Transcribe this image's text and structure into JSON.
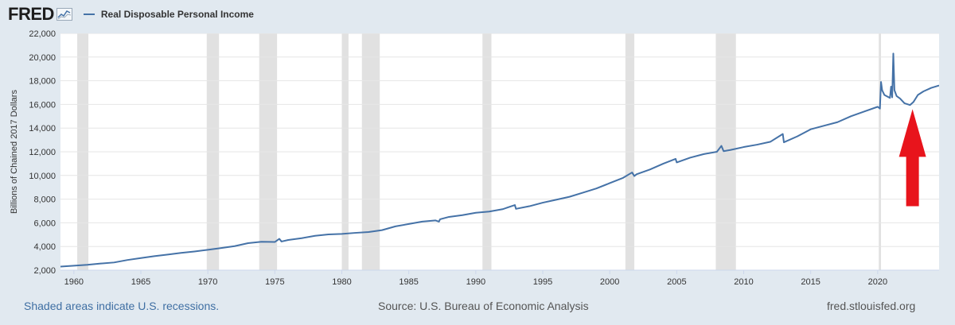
{
  "header": {
    "logo_text": "FRED",
    "legend_label": "Real Disposable Personal Income"
  },
  "footer": {
    "recession_note": "Shaded areas indicate U.S. recessions.",
    "source": "Source: U.S. Bureau of Economic Analysis",
    "site": "fred.stlouisfed.org"
  },
  "colors": {
    "series": "#4572a7",
    "recession": "#e1e1e1",
    "arrow": "#e8141c",
    "background": "#e1e9f0",
    "plot_bg": "#ffffff"
  },
  "icons": {
    "logo": "fred-logo-icon",
    "annotation": "red-up-arrow-icon"
  },
  "chart_data": {
    "type": "line",
    "title": "",
    "xlabel": "",
    "ylabel": "Billions of Chained 2017 Dollars",
    "xlim": [
      "1959-01-01",
      "2024-08-01"
    ],
    "ylim": [
      2000,
      22000
    ],
    "y_ticks": [
      2000,
      4000,
      6000,
      8000,
      10000,
      12000,
      14000,
      16000,
      18000,
      20000,
      22000
    ],
    "y_tick_labels": [
      "2,000",
      "4,000",
      "6,000",
      "8,000",
      "10,000",
      "12,000",
      "14,000",
      "16,000",
      "18,000",
      "20,000",
      "22,000"
    ],
    "x_ticks": [
      1960,
      1965,
      1970,
      1975,
      1980,
      1985,
      1990,
      1995,
      2000,
      2005,
      2010,
      2015,
      2020
    ],
    "x_tick_labels": [
      "1960",
      "1965",
      "1970",
      "1975",
      "1980",
      "1985",
      "1990",
      "1995",
      "2000",
      "2005",
      "2010",
      "2015",
      "2020"
    ],
    "grid": "horizontal",
    "legend": "top-left",
    "recessions": [
      [
        "1960-04-01",
        "1961-02-01"
      ],
      [
        "1969-12-01",
        "1970-11-01"
      ],
      [
        "1973-11-01",
        "1975-03-01"
      ],
      [
        "1980-01-01",
        "1980-07-01"
      ],
      [
        "1981-07-01",
        "1982-11-01"
      ],
      [
        "1990-07-01",
        "1991-03-01"
      ],
      [
        "2001-03-01",
        "2001-11-01"
      ],
      [
        "2007-12-01",
        "2009-06-01"
      ],
      [
        "2020-02-01",
        "2020-04-01"
      ]
    ],
    "series": [
      {
        "name": "Real Disposable Personal Income",
        "x": [
          "1959-01-01",
          "1960-01-01",
          "1961-01-01",
          "1962-01-01",
          "1963-01-01",
          "1964-01-01",
          "1965-01-01",
          "1966-01-01",
          "1967-01-01",
          "1968-01-01",
          "1969-01-01",
          "1970-01-01",
          "1971-01-01",
          "1972-01-01",
          "1973-01-01",
          "1974-01-01",
          "1975-01-01",
          "1975-05-01",
          "1975-07-01",
          "1976-01-01",
          "1977-01-01",
          "1978-01-01",
          "1979-01-01",
          "1980-01-01",
          "1981-01-01",
          "1982-01-01",
          "1983-01-01",
          "1984-01-01",
          "1985-01-01",
          "1986-01-01",
          "1987-01-01",
          "1987-04-01",
          "1987-05-01",
          "1988-01-01",
          "1989-01-01",
          "1990-01-01",
          "1991-01-01",
          "1992-01-01",
          "1992-12-01",
          "1993-01-01",
          "1994-01-01",
          "1995-01-01",
          "1996-01-01",
          "1997-01-01",
          "1998-01-01",
          "1999-01-01",
          "2000-01-01",
          "2001-01-01",
          "2001-09-01",
          "2001-11-01",
          "2002-01-01",
          "2003-01-01",
          "2004-01-01",
          "2004-12-01",
          "2005-01-01",
          "2006-01-01",
          "2007-01-01",
          "2008-01-01",
          "2008-05-01",
          "2008-07-01",
          "2009-01-01",
          "2010-01-01",
          "2011-01-01",
          "2012-01-01",
          "2012-12-01",
          "2013-01-01",
          "2014-01-01",
          "2015-01-01",
          "2016-01-01",
          "2017-01-01",
          "2018-01-01",
          "2019-01-01",
          "2020-01-01",
          "2020-03-01",
          "2020-04-01",
          "2020-05-01",
          "2020-07-01",
          "2020-10-01",
          "2020-12-01",
          "2021-01-01",
          "2021-02-01",
          "2021-03-01",
          "2021-04-01",
          "2021-06-01",
          "2021-09-01",
          "2022-01-01",
          "2022-06-01",
          "2022-09-01",
          "2023-01-01",
          "2023-06-01",
          "2024-01-01",
          "2024-08-01"
        ],
        "values": [
          2300,
          2380,
          2450,
          2560,
          2650,
          2860,
          3020,
          3180,
          3320,
          3460,
          3580,
          3720,
          3870,
          4030,
          4280,
          4400,
          4380,
          4650,
          4420,
          4550,
          4700,
          4900,
          5020,
          5060,
          5150,
          5220,
          5380,
          5700,
          5900,
          6100,
          6200,
          6100,
          6300,
          6500,
          6650,
          6850,
          6950,
          7150,
          7500,
          7180,
          7400,
          7700,
          7950,
          8200,
          8550,
          8900,
          9350,
          9800,
          10250,
          9950,
          10100,
          10500,
          11000,
          11400,
          11100,
          11500,
          11800,
          12000,
          12500,
          12050,
          12150,
          12400,
          12600,
          12850,
          13500,
          12800,
          13300,
          13900,
          14200,
          14500,
          15000,
          15400,
          15800,
          15650,
          17900,
          17200,
          16800,
          16650,
          16550,
          17500,
          16600,
          20300,
          17200,
          16700,
          16500,
          16100,
          15950,
          16200,
          16800,
          17100,
          17400,
          17600
        ]
      }
    ]
  }
}
